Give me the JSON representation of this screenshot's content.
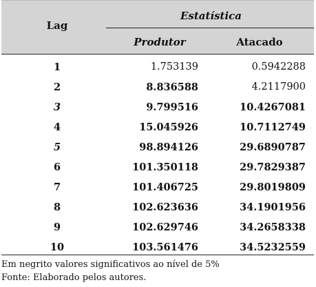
{
  "table": {
    "header": {
      "lag": "Lag",
      "statistic_group": "Estatística",
      "produtor": "Produtor",
      "atacado": "Atacado"
    },
    "rows": [
      {
        "lag": "1",
        "produtor": "1.753139",
        "atacado": "0.5942288"
      },
      {
        "lag": "2",
        "produtor": "8.836588",
        "atacado": "4.2117900"
      },
      {
        "lag": "3",
        "produtor": "9.799516",
        "atacado": "10.4267081"
      },
      {
        "lag": "4",
        "produtor": "15.045926",
        "atacado": "10.7112749"
      },
      {
        "lag": "5",
        "produtor": "98.894126",
        "atacado": "29.6890787"
      },
      {
        "lag": "6",
        "produtor": "101.350118",
        "atacado": "29.7829387"
      },
      {
        "lag": "7",
        "produtor": "101.406725",
        "atacado": "29.8019809"
      },
      {
        "lag": "8",
        "produtor": "102.623636",
        "atacado": "34.1901956"
      },
      {
        "lag": "9",
        "produtor": "102.629746",
        "atacado": "34.2658338"
      },
      {
        "lag": "10",
        "produtor": "103.561476",
        "atacado": "34.5232559"
      }
    ]
  },
  "notes": {
    "significance": "Em negrito valores significativos ao nível de 5%",
    "source": "Fonte: Elaborado pelos autores."
  }
}
